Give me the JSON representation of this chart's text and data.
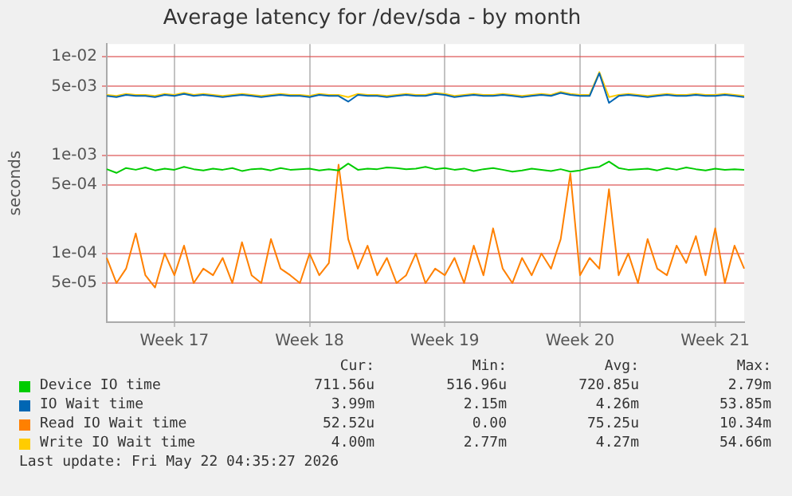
{
  "chart_data": {
    "type": "line",
    "title": "Average latency for /dev/sda - by month",
    "ylabel": "seconds",
    "log": true,
    "grid": true,
    "legend": "bottom",
    "marker": "none",
    "line_style": "solid",
    "ylim": [
      2e-05,
      0.0135
    ],
    "yticks": [
      {
        "value": 5e-05,
        "label": "5e-05"
      },
      {
        "value": 0.0001,
        "label": "1e-04"
      },
      {
        "value": 0.0005,
        "label": "5e-04"
      },
      {
        "value": 0.001,
        "label": "1e-03"
      },
      {
        "value": 0.005,
        "label": "5e-03"
      },
      {
        "value": 0.01,
        "label": "1e-02"
      }
    ],
    "categories": [
      null,
      null,
      null,
      null,
      null,
      null,
      null,
      "Week 17",
      null,
      null,
      null,
      null,
      null,
      null,
      null,
      null,
      null,
      null,
      null,
      null,
      null,
      "Week 18",
      null,
      null,
      null,
      null,
      null,
      null,
      null,
      null,
      null,
      null,
      null,
      null,
      null,
      "Week 19",
      null,
      null,
      null,
      null,
      null,
      null,
      null,
      null,
      null,
      null,
      null,
      null,
      null,
      "Week 20",
      null,
      null,
      null,
      null,
      null,
      null,
      null,
      null,
      null,
      null,
      null,
      null,
      null,
      "Week 21",
      null,
      null,
      null
    ],
    "series": [
      {
        "name": "Device IO time",
        "color": "#00cc00",
        "values": [
          0.00072,
          0.00066,
          0.00074,
          0.00071,
          0.00075,
          0.0007,
          0.00073,
          0.00071,
          0.00076,
          0.00072,
          0.0007,
          0.00073,
          0.00071,
          0.00074,
          0.00069,
          0.00072,
          0.00073,
          0.0007,
          0.00074,
          0.00071,
          0.00072,
          0.00073,
          0.0007,
          0.00072,
          0.0007,
          0.00082,
          0.00071,
          0.00073,
          0.00072,
          0.00075,
          0.00074,
          0.00072,
          0.00073,
          0.00076,
          0.00072,
          0.00074,
          0.00071,
          0.00073,
          0.00069,
          0.00072,
          0.00074,
          0.00071,
          0.00068,
          0.0007,
          0.00073,
          0.00071,
          0.00069,
          0.00072,
          0.00068,
          0.0007,
          0.00074,
          0.00076,
          0.00086,
          0.00074,
          0.00071,
          0.00072,
          0.00073,
          0.0007,
          0.00074,
          0.00071,
          0.00075,
          0.00072,
          0.0007,
          0.00073,
          0.00071,
          0.00072,
          0.00071
        ]
      },
      {
        "name": "IO Wait time",
        "color": "#0066b3",
        "values": [
          0.004,
          0.0039,
          0.0041,
          0.004,
          0.004,
          0.0039,
          0.0041,
          0.004,
          0.0042,
          0.004,
          0.0041,
          0.004,
          0.0039,
          0.004,
          0.0041,
          0.004,
          0.0039,
          0.004,
          0.0041,
          0.004,
          0.004,
          0.0039,
          0.0041,
          0.004,
          0.004,
          0.0035,
          0.0041,
          0.004,
          0.004,
          0.0039,
          0.004,
          0.0041,
          0.004,
          0.004,
          0.0042,
          0.0041,
          0.0039,
          0.004,
          0.0041,
          0.004,
          0.004,
          0.0041,
          0.004,
          0.0039,
          0.004,
          0.0041,
          0.004,
          0.0043,
          0.0041,
          0.004,
          0.004,
          0.0068,
          0.0034,
          0.004,
          0.0041,
          0.004,
          0.0039,
          0.004,
          0.0041,
          0.004,
          0.004,
          0.0041,
          0.004,
          0.004,
          0.0041,
          0.004,
          0.0039
        ]
      },
      {
        "name": "Read IO Wait time",
        "color": "#ff8000",
        "values": [
          9e-05,
          5e-05,
          7e-05,
          0.00016,
          6e-05,
          4.5e-05,
          0.0001,
          6e-05,
          0.00012,
          5e-05,
          7e-05,
          6e-05,
          9e-05,
          5e-05,
          0.00013,
          6e-05,
          5e-05,
          0.00014,
          7e-05,
          6e-05,
          5e-05,
          0.0001,
          6e-05,
          8e-05,
          0.0008,
          0.00014,
          7e-05,
          0.00012,
          6e-05,
          9e-05,
          5e-05,
          6e-05,
          0.0001,
          5e-05,
          7e-05,
          6e-05,
          9e-05,
          5e-05,
          0.00012,
          6e-05,
          0.00018,
          7e-05,
          5e-05,
          9e-05,
          6e-05,
          0.0001,
          7e-05,
          0.00014,
          0.00065,
          6e-05,
          9e-05,
          7e-05,
          0.00045,
          6e-05,
          0.0001,
          5e-05,
          0.00014,
          7e-05,
          6e-05,
          0.00012,
          8e-05,
          0.00015,
          6e-05,
          0.00018,
          5e-05,
          0.00012,
          7e-05
        ]
      },
      {
        "name": "Write IO Wait time",
        "color": "#ffcc00",
        "values": [
          0.0041,
          0.004,
          0.0042,
          0.0041,
          0.0041,
          0.004,
          0.0042,
          0.0041,
          0.0043,
          0.0041,
          0.0042,
          0.0041,
          0.004,
          0.0041,
          0.0042,
          0.0041,
          0.004,
          0.0041,
          0.0042,
          0.0041,
          0.0041,
          0.004,
          0.0042,
          0.0041,
          0.0041,
          0.0039,
          0.0042,
          0.0041,
          0.0041,
          0.004,
          0.0041,
          0.0042,
          0.0041,
          0.0041,
          0.0043,
          0.0042,
          0.004,
          0.0041,
          0.0042,
          0.0041,
          0.0041,
          0.0042,
          0.0041,
          0.004,
          0.0041,
          0.0042,
          0.0041,
          0.0044,
          0.0042,
          0.0041,
          0.0041,
          0.007,
          0.0039,
          0.0041,
          0.0042,
          0.0041,
          0.004,
          0.0041,
          0.0042,
          0.0041,
          0.0041,
          0.0042,
          0.0041,
          0.0041,
          0.0042,
          0.0041,
          0.004
        ]
      }
    ],
    "annotations": [
      "Cur:",
      "Min:",
      "Avg:",
      "Max:",
      "711.56u",
      "516.96u",
      "720.85u",
      "2.79m",
      "3.99m",
      "2.15m",
      "4.26m",
      "53.85m",
      "52.52u",
      "0.00",
      "75.25u",
      "10.34m",
      "4.00m",
      "2.77m",
      "4.27m",
      "54.66m",
      "Last update: Fri May 22 04:35:27 2026"
    ]
  }
}
